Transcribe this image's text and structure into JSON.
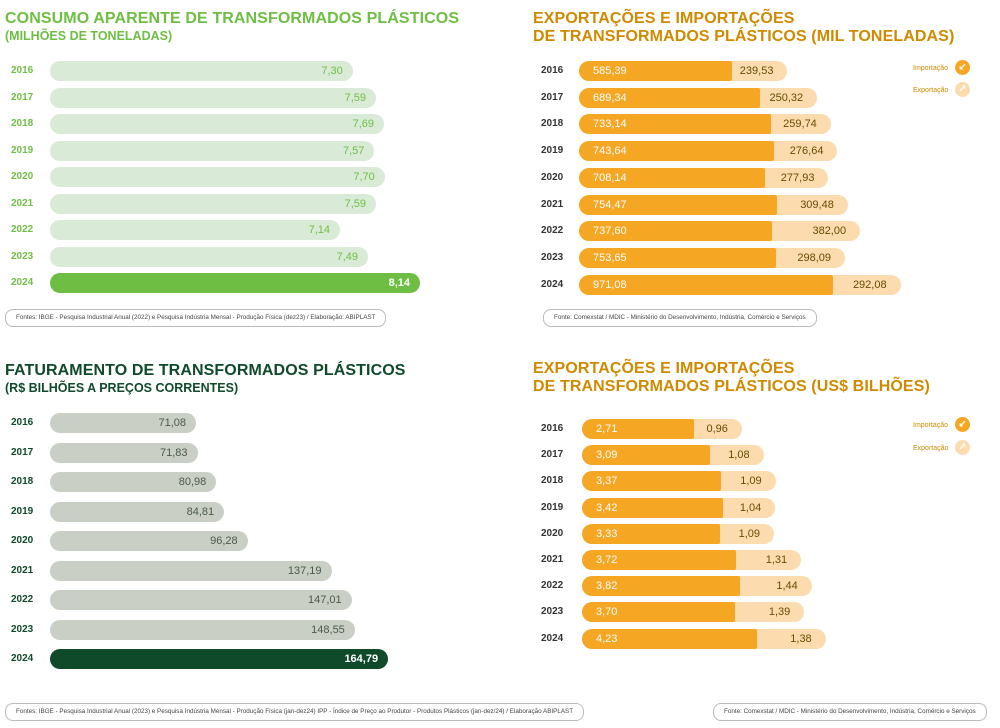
{
  "consumo": {
    "title": "CONSUMO APARENTE DE TRANSFORMADOS PLÁSTICOS",
    "subtitle": "(MILHÕES DE TONELADAS)",
    "footnote": "Fontes: IBGE - Pesquisa Industrial Anual (2022) e Pesquisa Indústria Mensal - Produção Física (dez23)  / Elaboração: ABIPLAST",
    "colors": {
      "bar": "#d9ebd6",
      "highlight": "#6fbe44",
      "text": "#6fbe44",
      "highlight_text": "#ffffff"
    }
  },
  "faturamento": {
    "title": "FATURAMENTO DE TRANSFORMADOS PLÁSTICOS",
    "subtitle": "(R$ BILHÕES A PREÇOS CORRENTES)",
    "footnote": "Fontes: IBGE - Pesquisa Industrial Anual (2023) e Pesquisa Indústria Mensal - Produção Física (jan-dez24) IPP - Índice de Preço ao Produtor - Produtos Plásticos (jan-dez/24) / Elaboração ABIPLAST",
    "colors": {
      "bar": "#c9cfc5",
      "highlight": "#0f4a2a",
      "text": "#0f4a2a",
      "value_text": "#4b5a48",
      "highlight_text": "#ffffff"
    }
  },
  "export_ton": {
    "title_line1": "EXPORTAÇÕES E IMPORTAÇÕES",
    "title_line2": "DE TRANSFORMADOS PLÁSTICOS (MIL TONELADAS)",
    "footnote": "Fonte: Comexstat / MDIC - Ministério do Desenvolvimento, Indústria, Comércio e Serviços",
    "legend": {
      "import_label": "Importação",
      "export_label": "Exportação"
    }
  },
  "export_usd": {
    "title_line1": "EXPORTAÇÕES E IMPORTAÇÕES",
    "title_line2": "DE TRANSFORMADOS PLÁSTICOS (US$ BILHÕES)",
    "footnote": "Fonte: Comexstat / MDIC - Ministério do Desenvolvimento, Indústria, Comércio e Serviços",
    "legend": {
      "import_label": "Importação",
      "export_label": "Exportação"
    }
  },
  "icons": {
    "import": "arrow-down-left-icon",
    "export": "arrow-up-right-icon"
  },
  "colors": {
    "orange": "#f5a623",
    "light_orange": "#fcdcae",
    "orange_text": "#d08a00"
  },
  "chart_data": [
    {
      "id": "consumo",
      "type": "bar",
      "title": "CONSUMO APARENTE DE TRANSFORMADOS PLÁSTICOS",
      "ylabel": "(MILHÕES DE TONELADAS)",
      "categories": [
        "2016",
        "2017",
        "2018",
        "2019",
        "2020",
        "2021",
        "2022",
        "2023",
        "2024"
      ],
      "values": [
        7.3,
        7.59,
        7.69,
        7.57,
        7.7,
        7.59,
        7.14,
        7.49,
        8.14
      ],
      "labels": [
        "7,30",
        "7,59",
        "7,69",
        "7,57",
        "7,70",
        "7,59",
        "7,14",
        "7,49",
        "8,14"
      ],
      "highlight_index": 8
    },
    {
      "id": "faturamento",
      "type": "bar",
      "title": "FATURAMENTO DE TRANSFORMADOS PLÁSTICOS",
      "ylabel": "(R$ BILHÕES A PREÇOS CORRENTES)",
      "categories": [
        "2016",
        "2017",
        "2018",
        "2019",
        "2020",
        "2021",
        "2022",
        "2023",
        "2024"
      ],
      "values": [
        71.08,
        71.83,
        80.98,
        84.81,
        96.28,
        137.19,
        147.01,
        148.55,
        164.79
      ],
      "labels": [
        "71,08",
        "71,83",
        "80,98",
        "84,81",
        "96,28",
        "137,19",
        "147,01",
        "148,55",
        "164,79"
      ],
      "highlight_index": 8
    },
    {
      "id": "export_ton",
      "type": "bar",
      "title": "EXPORTAÇÕES E IMPORTAÇÕES DE TRANSFORMADOS PLÁSTICOS (MIL TONELADAS)",
      "categories": [
        "2016",
        "2017",
        "2018",
        "2019",
        "2020",
        "2021",
        "2022",
        "2023",
        "2024"
      ],
      "series": [
        {
          "name": "Importação",
          "values": [
            585.39,
            689.34,
            733.14,
            743.64,
            708.14,
            754.47,
            737.6,
            753.65,
            971.08
          ],
          "labels": [
            "585,39",
            "689,34",
            "733,14",
            "743,64",
            "708,14",
            "754,47",
            "737,60",
            "753,65",
            "971,08"
          ]
        },
        {
          "name": "Exportação",
          "values": [
            239.53,
            250.32,
            259.74,
            276.64,
            277.93,
            309.48,
            382.0,
            298.09,
            292.08
          ],
          "labels": [
            "239,53",
            "250,32",
            "259,74",
            "276,64",
            "277,93",
            "309,48",
            "382,00",
            "298,09",
            "292,08"
          ]
        }
      ],
      "stacked": true
    },
    {
      "id": "export_usd",
      "type": "bar",
      "title": "EXPORTAÇÕES E IMPORTAÇÕES DE TRANSFORMADOS PLÁSTICOS (US$ BILHÕES)",
      "categories": [
        "2016",
        "2017",
        "2018",
        "2019",
        "2020",
        "2021",
        "2022",
        "2023",
        "2024"
      ],
      "series": [
        {
          "name": "Importação",
          "values": [
            2.71,
            3.09,
            3.37,
            3.42,
            3.33,
            3.72,
            3.82,
            3.7,
            4.23
          ],
          "labels": [
            "2,71",
            "3,09",
            "3,37",
            "3,42",
            "3,33",
            "3,72",
            "3,82",
            "3,70",
            "4,23"
          ]
        },
        {
          "name": "Exportação",
          "values": [
            0.96,
            1.08,
            1.09,
            1.04,
            1.09,
            1.31,
            1.44,
            1.39,
            1.38
          ],
          "labels": [
            "0,96",
            "1,08",
            "1,09",
            "1,04",
            "1,09",
            "1,31",
            "1,44",
            "1,39",
            "1,38"
          ]
        }
      ],
      "stacked": true
    }
  ]
}
